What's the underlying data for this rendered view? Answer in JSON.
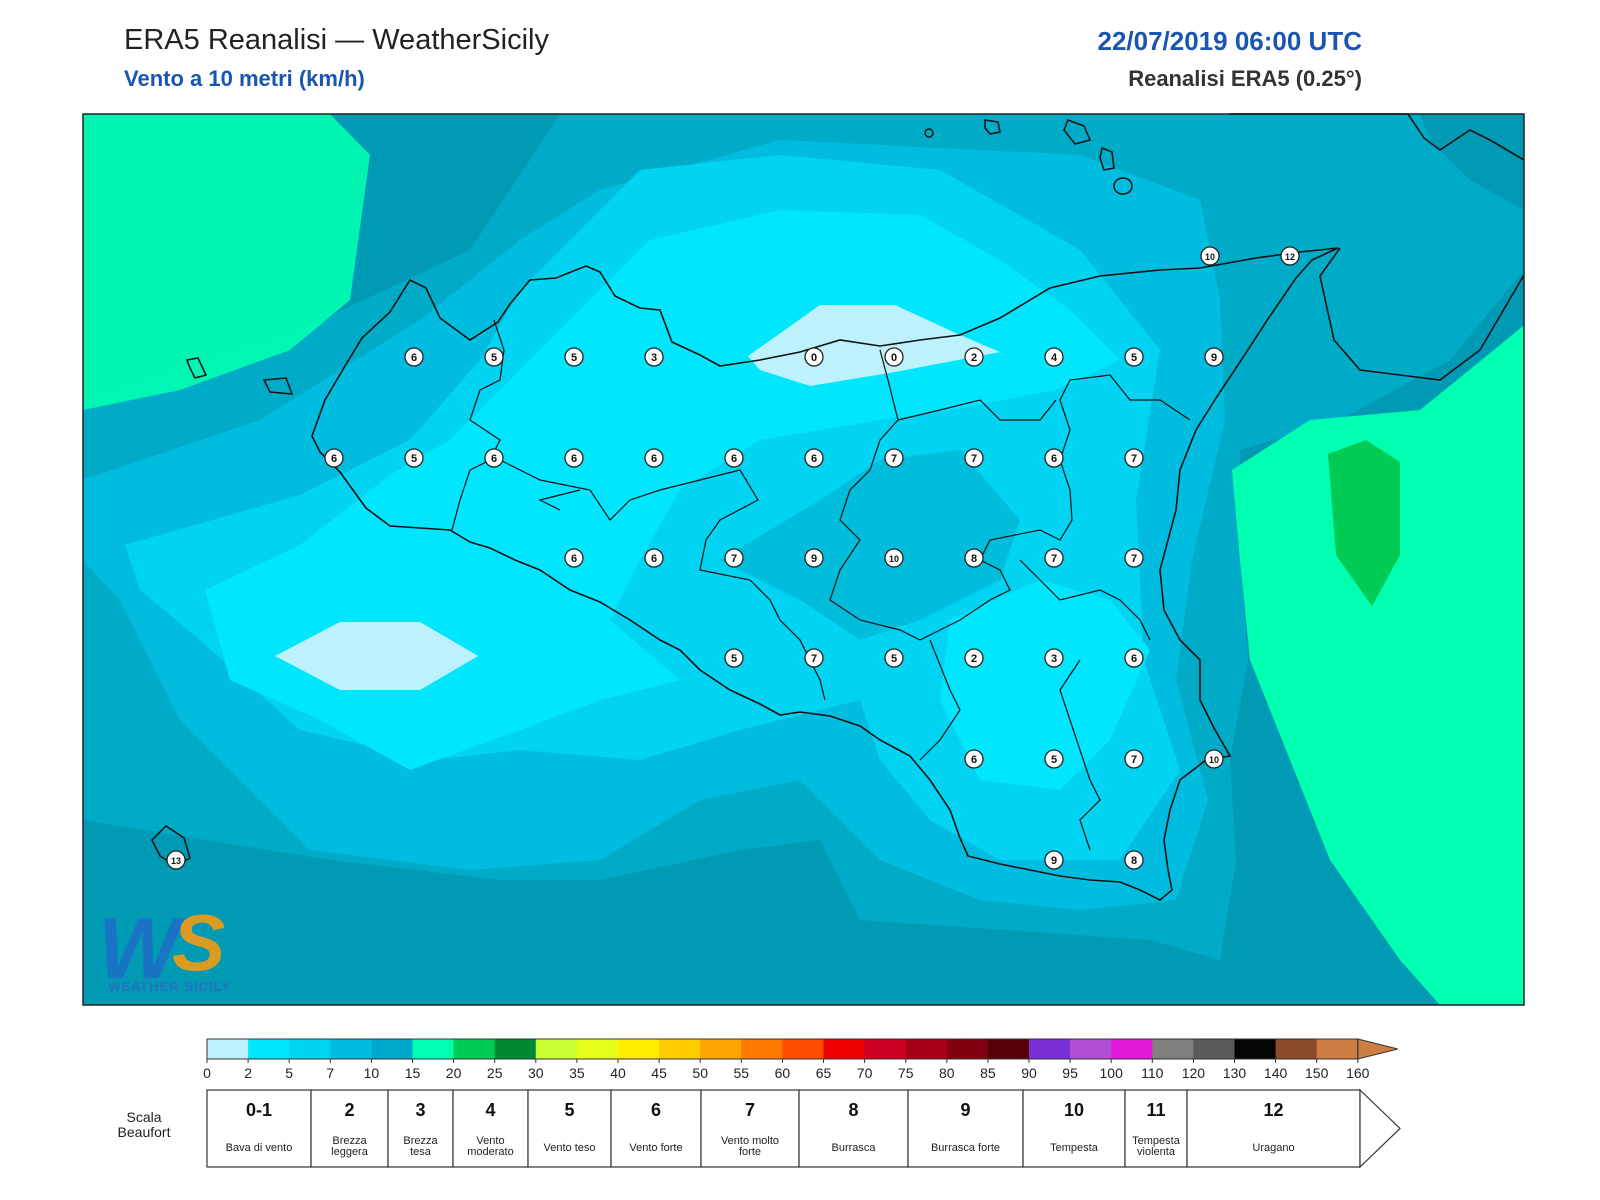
{
  "header": {
    "title": "ERA5 Reanalisi — WeatherSicily",
    "subtitle": "Vento a 10 metri (km/h)",
    "datetime": "22/07/2019 06:00 UTC",
    "source": "Reanalisi ERA5 (0.25°)"
  },
  "logo": {
    "text": "WEATHER SICILY"
  },
  "stations": [
    {
      "v": "10"
    },
    {
      "v": "12"
    },
    {
      "v": "6"
    },
    {
      "v": "5"
    },
    {
      "v": "5"
    },
    {
      "v": "3"
    },
    {
      "v": "0"
    },
    {
      "v": "0"
    },
    {
      "v": "2"
    },
    {
      "v": "4"
    },
    {
      "v": "5"
    },
    {
      "v": "9"
    },
    {
      "v": "6"
    },
    {
      "v": "5"
    },
    {
      "v": "6"
    },
    {
      "v": "6"
    },
    {
      "v": "6"
    },
    {
      "v": "6"
    },
    {
      "v": "6"
    },
    {
      "v": "7"
    },
    {
      "v": "7"
    },
    {
      "v": "6"
    },
    {
      "v": "7"
    },
    {
      "v": "6"
    },
    {
      "v": "6"
    },
    {
      "v": "7"
    },
    {
      "v": "9"
    },
    {
      "v": "10"
    },
    {
      "v": "8"
    },
    {
      "v": "7"
    },
    {
      "v": "7"
    },
    {
      "v": "5"
    },
    {
      "v": "7"
    },
    {
      "v": "5"
    },
    {
      "v": "2"
    },
    {
      "v": "3"
    },
    {
      "v": "6"
    },
    {
      "v": "6"
    },
    {
      "v": "5"
    },
    {
      "v": "7"
    },
    {
      "v": "10"
    },
    {
      "v": "9"
    },
    {
      "v": "8"
    },
    {
      "v": "13"
    }
  ],
  "colorbar": {
    "ticks": [
      "0",
      "2",
      "5",
      "7",
      "10",
      "15",
      "20",
      "25",
      "30",
      "35",
      "40",
      "45",
      "50",
      "55",
      "60",
      "65",
      "70",
      "75",
      "80",
      "85",
      "90",
      "95",
      "100",
      "110",
      "120",
      "130",
      "140",
      "150",
      "160"
    ],
    "colors": [
      "#bdf2fc",
      "#00e6ff",
      "#00d4f2",
      "#00bde0",
      "#00a8cc",
      "#00ffb0",
      "#00cc55",
      "#008833",
      "#c8ff33",
      "#e6ff1a",
      "#ffee00",
      "#ffcc00",
      "#ffa500",
      "#ff7a00",
      "#ff4d00",
      "#ee0000",
      "#cc0022",
      "#a8001a",
      "#800010",
      "#550008",
      "#7a2fd6",
      "#b04fd6",
      "#e01ad6",
      "#808080",
      "#5a5a5a",
      "#050505",
      "#8b4a2a",
      "#cd7f43"
    ]
  },
  "beaufort": {
    "label": "Scala Beaufort",
    "levels": [
      {
        "num": "0-1",
        "desc": "Bava di vento"
      },
      {
        "num": "2",
        "desc": "Brezza leggera"
      },
      {
        "num": "3",
        "desc": "Brezza tesa"
      },
      {
        "num": "4",
        "desc": "Vento moderato"
      },
      {
        "num": "5",
        "desc": "Vento teso"
      },
      {
        "num": "6",
        "desc": "Vento forte"
      },
      {
        "num": "7",
        "desc": "Vento molto forte"
      },
      {
        "num": "8",
        "desc": "Burrasca"
      },
      {
        "num": "9",
        "desc": "Burrasca forte"
      },
      {
        "num": "10",
        "desc": "Tempesta"
      },
      {
        "num": "11",
        "desc": "Tempesta violenta"
      },
      {
        "num": "12",
        "desc": "Uragano"
      }
    ]
  }
}
